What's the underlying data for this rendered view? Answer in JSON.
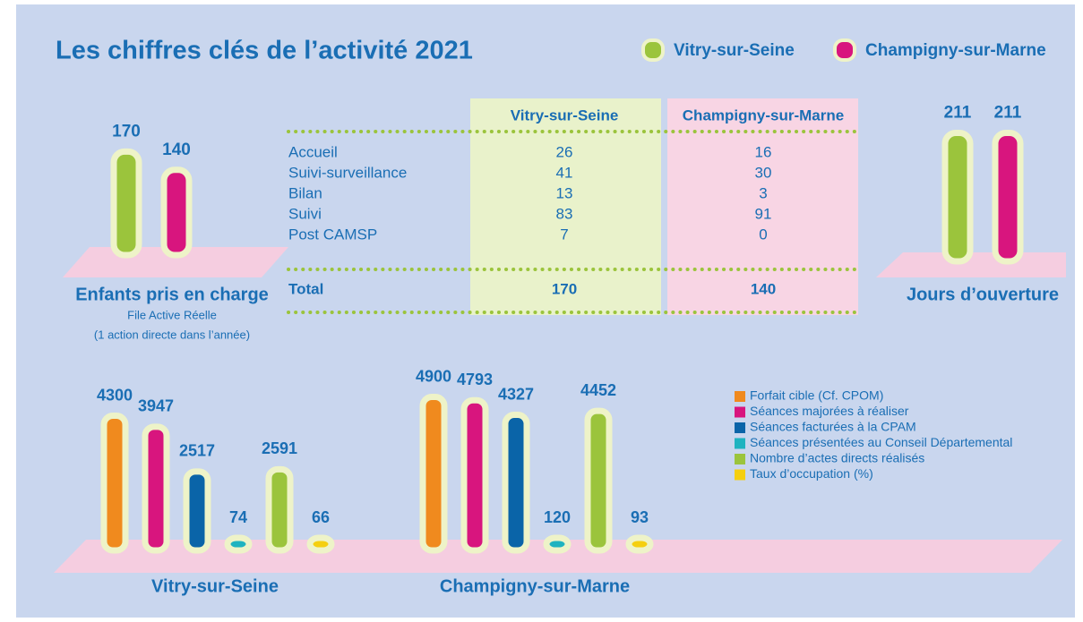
{
  "title": "Les chiffres clés de l’activité 2021",
  "chart_data": [
    {
      "type": "bar",
      "title": "Enfants pris en charge",
      "subtitle": [
        "File Active Réelle",
        "(1 action directe dans l’année)"
      ],
      "series": [
        {
          "name": "Vitry-sur-Seine",
          "color": "#9bc43c",
          "values": [
            170
          ]
        },
        {
          "name": "Champigny-sur-Marne",
          "color": "#d8157e",
          "values": [
            140
          ]
        }
      ]
    },
    {
      "type": "bar",
      "title": "Jours d’ouverture",
      "series": [
        {
          "color": "#9bc43c",
          "values": [
            211
          ]
        },
        {
          "color": "#d8157e",
          "values": [
            211
          ]
        }
      ]
    },
    {
      "type": "bar",
      "categories": [
        "Vitry-sur-Seine",
        "Champigny-sur-Marne"
      ],
      "series": [
        {
          "name": "Forfait cible (Cf. CPOM)",
          "color": "#f08a1e",
          "values": [
            4300,
            4900
          ]
        },
        {
          "name": "Séances majorées à réaliser",
          "color": "#d8157e",
          "values": [
            3947,
            4793
          ]
        },
        {
          "name": "Séances facturées à la CPAM",
          "color": "#0a64a8",
          "values": [
            2517,
            4327
          ]
        },
        {
          "name": "Séances présentées au Conseil Départemental",
          "color": "#1fb3c0",
          "values": [
            74,
            120
          ]
        },
        {
          "name": "Nombre d’actes directs réalisés",
          "color": "#9bc43c",
          "values": [
            2591,
            4452
          ]
        },
        {
          "name": "Taux d’occupation (%)",
          "color": "#f5cf10",
          "values": [
            66,
            93
          ]
        }
      ]
    }
  ],
  "table": {
    "header": [
      "Vitry-sur-Seine",
      "Champigny-sur-Marne"
    ],
    "rows": [
      [
        "Accueil",
        26,
        16
      ],
      [
        "Suivi-surveillance",
        41,
        30
      ],
      [
        "Bilan",
        13,
        3
      ],
      [
        "Suivi",
        83,
        91
      ],
      [
        "Post CAMSP",
        7,
        0
      ]
    ],
    "total": [
      "Total",
      170,
      140
    ]
  }
}
